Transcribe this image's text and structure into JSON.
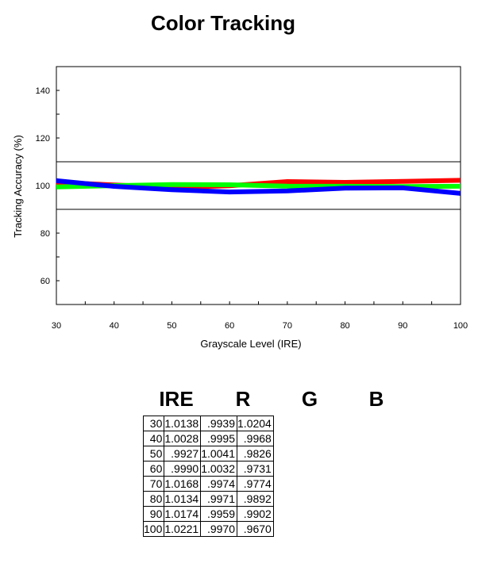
{
  "chart_data": {
    "type": "line",
    "title": "Color Tracking",
    "xlabel": "Grayscale Level (IRE)",
    "ylabel": "Tracking Accuracy (%)",
    "xlim": [
      30,
      100
    ],
    "ylim": [
      50,
      150
    ],
    "xticks": [
      30,
      40,
      50,
      60,
      70,
      80,
      90,
      100
    ],
    "yticks": [
      60,
      80,
      100,
      120,
      140
    ],
    "reference_lines": [
      90,
      110
    ],
    "x": [
      30,
      40,
      50,
      60,
      70,
      80,
      90,
      100
    ],
    "series": [
      {
        "color": "#ff0000",
        "values": [
          101.38,
          100.28,
          99.27,
          99.9,
          101.68,
          101.34,
          101.74,
          102.21
        ]
      },
      {
        "color": "#00ff00",
        "values": [
          99.39,
          99.95,
          100.41,
          100.32,
          99.74,
          99.71,
          99.59,
          99.7
        ]
      },
      {
        "color": "#0000ff",
        "values": [
          102.04,
          99.68,
          98.26,
          97.31,
          97.74,
          98.92,
          99.02,
          96.7
        ]
      }
    ]
  },
  "table": {
    "headers": [
      "IRE",
      "R",
      "G",
      "B"
    ],
    "rows": [
      [
        "30",
        "1.0138",
        ".9939",
        "1.0204"
      ],
      [
        "40",
        "1.0028",
        ".9995",
        ".9968"
      ],
      [
        "50",
        ".9927",
        "1.0041",
        ".9826"
      ],
      [
        "60",
        ".9990",
        "1.0032",
        ".9731"
      ],
      [
        "70",
        "1.0168",
        ".9974",
        ".9774"
      ],
      [
        "80",
        "1.0134",
        ".9971",
        ".9892"
      ],
      [
        "90",
        "1.0174",
        ".9959",
        ".9902"
      ],
      [
        "100",
        "1.0221",
        ".9970",
        ".9670"
      ]
    ]
  }
}
